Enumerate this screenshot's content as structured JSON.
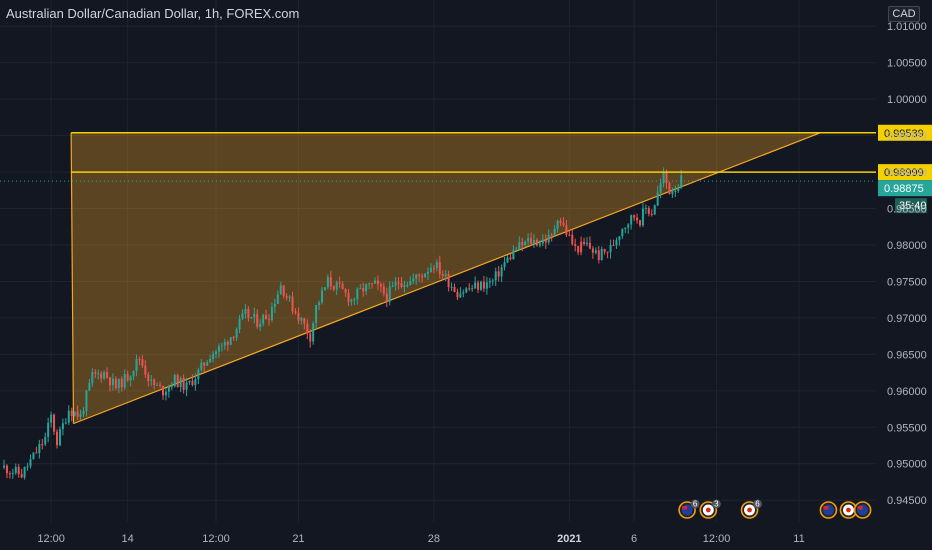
{
  "header": {
    "title": "Australian Dollar/Canadian Dollar, 1h, FOREX.com",
    "currency": "CAD"
  },
  "colors": {
    "background": "#131722",
    "grid": "#1f2330",
    "bull": "#26a69a",
    "bear": "#ef5350",
    "pattern_line": "#f5a623",
    "pattern_fill": "#f5a623",
    "level_line": "#f5d000",
    "current_price": "#26a69a",
    "axis_text": "#b2b5be"
  },
  "chart_data": {
    "type": "candlestick",
    "title": "Australian Dollar/Canadian Dollar, 1h, FOREX.com",
    "ylim": [
      0.9405,
      1.0125
    ],
    "y_ticks": [
      "0.94500",
      "0.95000",
      "0.95500",
      "0.96000",
      "0.96500",
      "0.97000",
      "0.97500",
      "0.98000",
      "0.98500",
      "0.99000",
      "0.99500",
      "1.00000",
      "1.00500",
      "1.01000"
    ],
    "x_ticks": [
      {
        "label": "12:00",
        "t": 4.5
      },
      {
        "label": "14",
        "t": 11
      },
      {
        "label": "12:00",
        "t": 18.5
      },
      {
        "label": "21",
        "t": 25.5
      },
      {
        "label": "28",
        "t": 37
      },
      {
        "label": "2021",
        "t": 48.5,
        "bold": true
      },
      {
        "label": "6",
        "t": 54
      },
      {
        "label": "12:00",
        "t": 61
      },
      {
        "label": "11",
        "t": 68
      }
    ],
    "xlim": [
      0.5,
      77
    ],
    "price_path": [
      [
        0.5,
        0.9495
      ],
      [
        2,
        0.9485
      ],
      [
        3,
        0.951
      ],
      [
        4,
        0.9535
      ],
      [
        4.5,
        0.9565
      ],
      [
        5,
        0.953
      ],
      [
        6,
        0.9575
      ],
      [
        7,
        0.9565
      ],
      [
        8,
        0.962
      ],
      [
        9,
        0.9625
      ],
      [
        10,
        0.9605
      ],
      [
        11,
        0.962
      ],
      [
        12,
        0.9645
      ],
      [
        13,
        0.961
      ],
      [
        14,
        0.96
      ],
      [
        15,
        0.9615
      ],
      [
        15.5,
        0.961
      ],
      [
        16,
        0.9605
      ],
      [
        17,
        0.9625
      ],
      [
        18,
        0.965
      ],
      [
        19,
        0.966
      ],
      [
        20,
        0.968
      ],
      [
        21,
        0.9705
      ],
      [
        22,
        0.9695
      ],
      [
        23,
        0.9705
      ],
      [
        24,
        0.9745
      ],
      [
        25,
        0.9715
      ],
      [
        26,
        0.969
      ],
      [
        26.5,
        0.9675
      ],
      [
        27,
        0.9715
      ],
      [
        28,
        0.975
      ],
      [
        29,
        0.974
      ],
      [
        30,
        0.9725
      ],
      [
        31,
        0.974
      ],
      [
        32,
        0.9745
      ],
      [
        33,
        0.973
      ],
      [
        34,
        0.975
      ],
      [
        35,
        0.975
      ],
      [
        36,
        0.976
      ],
      [
        37,
        0.9775
      ],
      [
        37.5,
        0.9765
      ],
      [
        38,
        0.9755
      ],
      [
        39,
        0.9735
      ],
      [
        40,
        0.974
      ],
      [
        41,
        0.9745
      ],
      [
        42,
        0.975
      ],
      [
        43,
        0.9775
      ],
      [
        44,
        0.9795
      ],
      [
        45,
        0.9805
      ],
      [
        46,
        0.9805
      ],
      [
        47,
        0.981
      ],
      [
        47.5,
        0.984
      ],
      [
        48,
        0.9825
      ],
      [
        48.5,
        0.981
      ],
      [
        49,
        0.9795
      ],
      [
        50,
        0.98
      ],
      [
        51,
        0.9785
      ],
      [
        52,
        0.9795
      ],
      [
        53,
        0.9825
      ],
      [
        54,
        0.984
      ],
      [
        54.5,
        0.9835
      ],
      [
        55,
        0.985
      ],
      [
        55.5,
        0.9845
      ],
      [
        56,
        0.987
      ],
      [
        56.5,
        0.9895
      ],
      [
        57,
        0.9875
      ],
      [
        57.5,
        0.988
      ],
      [
        58,
        0.9888
      ]
    ],
    "bear_ranges": [
      [
        48,
        49.5
      ]
    ],
    "pattern": {
      "name": "ascending triangle",
      "vertices": [
        {
          "t": 6.2,
          "price": 0.99539
        },
        {
          "t": 69.8,
          "price": 0.99539
        },
        {
          "t": 6.4,
          "price": 0.9555
        }
      ],
      "apex_line": [
        {
          "t": 6.4,
          "price": 0.9555
        },
        {
          "t": 69.8,
          "price": 0.99539
        }
      ],
      "vertical": [
        {
          "t": 6.2,
          "price": 0.99539
        },
        {
          "t": 6.4,
          "price": 0.9555
        }
      ],
      "top_level": [
        {
          "t": 6.2,
          "price": 0.99539
        },
        {
          "t": 77,
          "price": 0.99539
        }
      ]
    },
    "levels": [
      {
        "price": 0.99539,
        "label": "0.99539",
        "t_start": 6.2
      },
      {
        "price": 0.98999,
        "label": "0.98999",
        "t_start": 6.2
      }
    ],
    "current_price": {
      "price": 0.98875,
      "label": "0.98875",
      "countdown": "35:40"
    },
    "events": [
      {
        "t": 58.5,
        "kind": "AU",
        "badge": "6"
      },
      {
        "t": 60.3,
        "kind": "CA",
        "badge": "3"
      },
      {
        "t": 63.8,
        "kind": "CA",
        "badge": "6"
      },
      {
        "t": 70.5,
        "kind": "AU",
        "badge": ""
      },
      {
        "t": 72.2,
        "kind": "CA",
        "badge": ""
      },
      {
        "t": 73.4,
        "kind": "AU",
        "badge": ""
      }
    ]
  }
}
